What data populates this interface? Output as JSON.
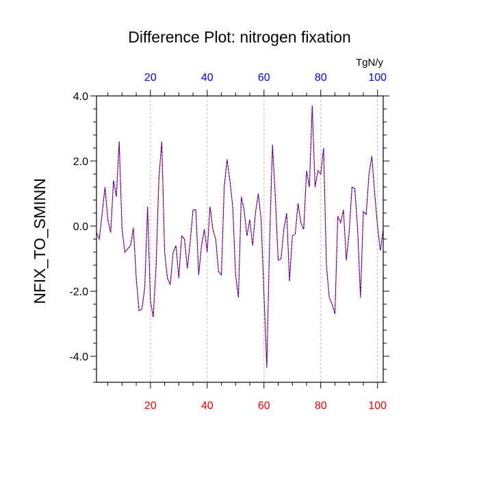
{
  "chart_data": {
    "type": "line",
    "title": "Difference Plot: nitrogen fixation",
    "units": "TgN/y",
    "ylabel": "NFIX_TO_SMINN",
    "xlabel": "",
    "xlim": [
      1,
      102
    ],
    "ylim": [
      -4.8,
      4.0
    ],
    "yticks": [
      {
        "value": 4.0,
        "label": "4.0"
      },
      {
        "value": 2.0,
        "label": "2.0"
      },
      {
        "value": 0.0,
        "label": "0.0"
      },
      {
        "value": -2.0,
        "label": "-2.0"
      },
      {
        "value": -4.0,
        "label": "-4.0"
      }
    ],
    "xticks_bottom": [
      {
        "value": 20,
        "label": "20"
      },
      {
        "value": 40,
        "label": "40"
      },
      {
        "value": 60,
        "label": "60"
      },
      {
        "value": 80,
        "label": "80"
      },
      {
        "value": 100,
        "label": "100"
      }
    ],
    "xticks_top": [
      {
        "value": 20,
        "label": "20"
      },
      {
        "value": 40,
        "label": "40"
      },
      {
        "value": 60,
        "label": "60"
      },
      {
        "value": 80,
        "label": "80"
      },
      {
        "value": 100,
        "label": "100"
      }
    ],
    "grid": {
      "x": true,
      "y": false,
      "style": "dashed"
    },
    "colors": {
      "series_primary": "#ff0000",
      "series_overlay": "#0000ff",
      "top_tick_labels": "#0000ff",
      "bottom_tick_labels": "#ff0000",
      "grid": "#b4b4b4",
      "frame": "#000000"
    },
    "series": [
      {
        "name": "difference",
        "x": [
          1,
          2,
          3,
          4,
          5,
          6,
          7,
          8,
          9,
          10,
          11,
          12,
          13,
          14,
          15,
          16,
          17,
          18,
          19,
          20,
          21,
          22,
          23,
          24,
          25,
          26,
          27,
          28,
          29,
          30,
          31,
          32,
          33,
          34,
          35,
          36,
          37,
          38,
          39,
          40,
          41,
          42,
          43,
          44,
          45,
          46,
          47,
          48,
          49,
          50,
          51,
          52,
          53,
          54,
          55,
          56,
          57,
          58,
          59,
          60,
          61,
          62,
          63,
          64,
          65,
          66,
          67,
          68,
          69,
          70,
          71,
          72,
          73,
          74,
          75,
          76,
          77,
          78,
          79,
          80,
          81,
          82,
          83,
          84,
          85,
          86,
          87,
          88,
          89,
          90,
          91,
          92,
          93,
          94,
          95,
          96,
          97,
          98,
          99,
          100,
          101,
          102
        ],
        "values": [
          -0.2,
          -0.4,
          0.4,
          1.2,
          0.2,
          -0.2,
          1.4,
          0.9,
          2.6,
          -0.1,
          -0.8,
          -0.7,
          -0.6,
          -0.05,
          -1.6,
          -2.6,
          -2.55,
          -1.9,
          0.6,
          -2.3,
          -2.8,
          -1.2,
          1.5,
          2.6,
          -0.8,
          -1.6,
          -1.8,
          -0.8,
          -0.6,
          -1.6,
          -0.3,
          -0.4,
          -1.3,
          -0.5,
          0.5,
          0.5,
          -1.5,
          -0.6,
          -0.1,
          -0.8,
          0.6,
          -0.1,
          -0.4,
          -1.4,
          -1.5,
          1.2,
          2.05,
          1.4,
          0.6,
          -1.5,
          -2.2,
          0.9,
          0.5,
          -0.3,
          0.2,
          -0.6,
          0.4,
          1.0,
          0.2,
          -2.1,
          -4.35,
          -0.4,
          2.5,
          0.9,
          -1.05,
          -1.0,
          -0.1,
          0.4,
          -1.7,
          -0.3,
          -0.25,
          0.7,
          0.1,
          -0.1,
          1.7,
          1.2,
          3.7,
          1.2,
          1.7,
          1.6,
          2.4,
          -1.2,
          -2.2,
          -2.4,
          -2.7,
          0.3,
          0.1,
          0.5,
          -1.05,
          -0.2,
          1.2,
          1.15,
          -0.1,
          -2.2,
          0.45,
          0.35,
          1.6,
          2.15,
          1.0,
          0.0,
          -0.75,
          -0.1
        ]
      }
    ]
  }
}
